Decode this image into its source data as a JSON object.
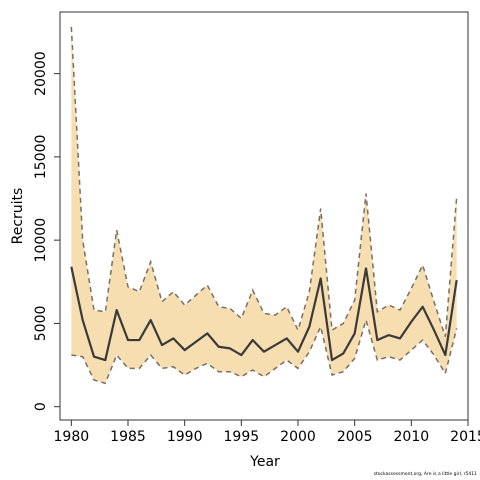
{
  "chart_data": {
    "type": "line",
    "title": "",
    "xlabel": "Year",
    "ylabel": "Recruits",
    "xlim": [
      1979,
      2015
    ],
    "ylim": [
      -800,
      23700
    ],
    "x_ticks": [
      1980,
      1985,
      1990,
      1995,
      2000,
      2005,
      2010,
      2015
    ],
    "y_ticks": [
      0,
      5000,
      10000,
      15000,
      20000
    ],
    "grid": false,
    "legend": "none",
    "colors": {
      "band": "#f6deb0",
      "bounds": "#7a6e63",
      "median": "#3a3a3a"
    },
    "x": [
      1980,
      1981,
      1982,
      1983,
      1984,
      1985,
      1986,
      1987,
      1988,
      1989,
      1990,
      1991,
      1992,
      1993,
      1994,
      1995,
      1996,
      1997,
      1998,
      1999,
      2000,
      2001,
      2002,
      2003,
      2004,
      2005,
      2006,
      2007,
      2008,
      2009,
      2010,
      2011,
      2012,
      2013,
      2014
    ],
    "series": [
      {
        "role": "upper",
        "values": [
          22800,
          10000,
          5800,
          5700,
          10600,
          7200,
          6900,
          8700,
          6300,
          6900,
          6100,
          6700,
          7300,
          6000,
          5900,
          5300,
          7000,
          5600,
          5500,
          6000,
          4600,
          6900,
          11900,
          4600,
          5000,
          6400,
          12800,
          5700,
          6100,
          5800,
          7100,
          8500,
          6300,
          4200,
          12600
        ]
      },
      {
        "role": "median",
        "values": [
          8400,
          5200,
          3000,
          2800,
          5800,
          4000,
          4000,
          5200,
          3700,
          4100,
          3400,
          3900,
          4400,
          3600,
          3500,
          3100,
          4000,
          3300,
          3700,
          4100,
          3300,
          4800,
          7700,
          2800,
          3200,
          4400,
          8300,
          4000,
          4300,
          4100,
          5100,
          6000,
          4600,
          3100,
          7600
        ]
      },
      {
        "role": "lower",
        "values": [
          3100,
          3000,
          1600,
          1400,
          3100,
          2300,
          2300,
          3100,
          2300,
          2400,
          1900,
          2300,
          2600,
          2100,
          2100,
          1800,
          2200,
          1800,
          2300,
          2800,
          2300,
          3300,
          4800,
          1900,
          2100,
          2900,
          5200,
          2800,
          3000,
          2800,
          3400,
          4000,
          3100,
          2000,
          4700
        ]
      }
    ]
  },
  "footnote": "stockassessment.org, Are is a little girl, r5411"
}
